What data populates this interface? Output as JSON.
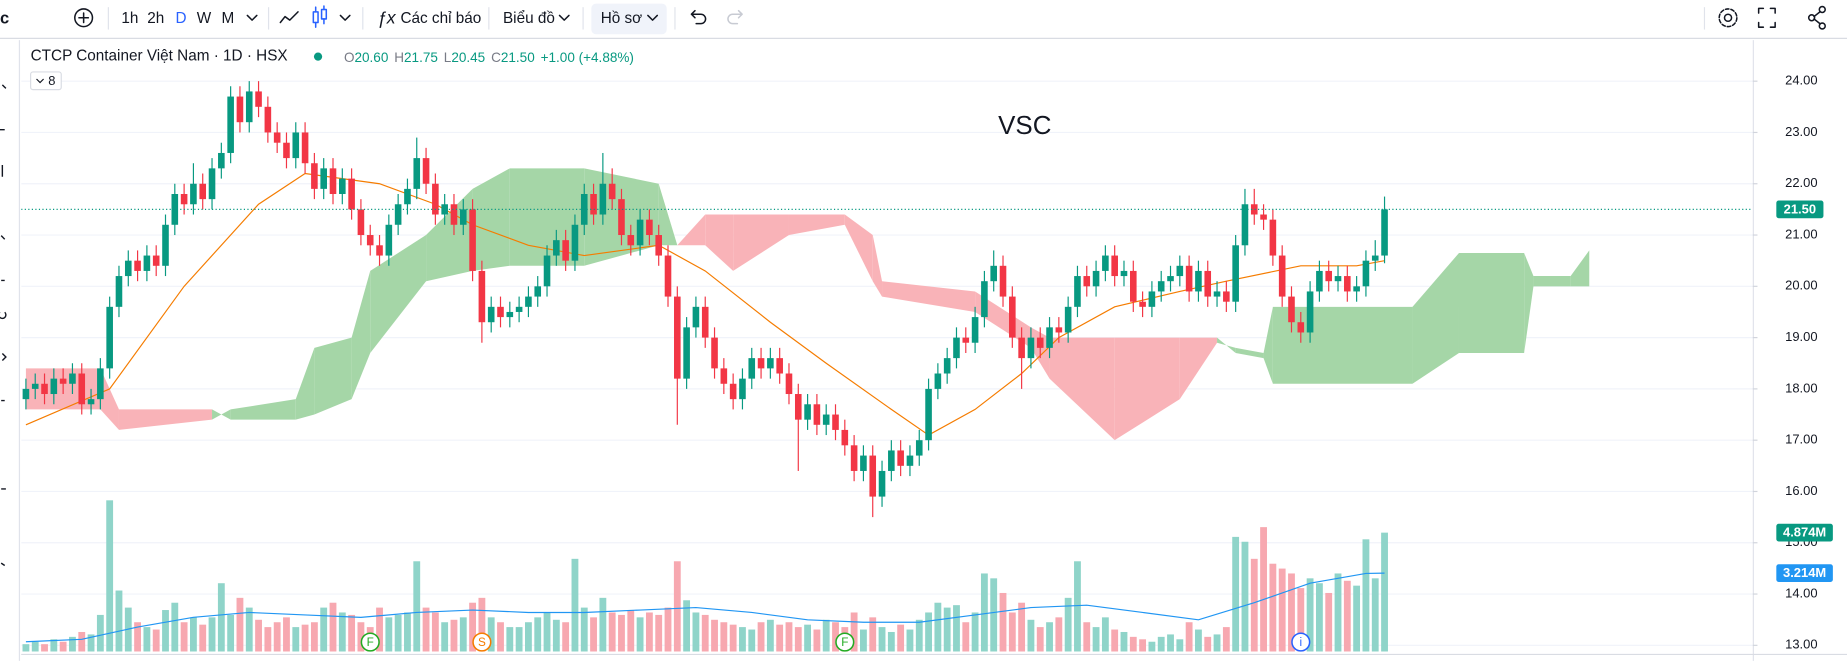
{
  "toolbar": {
    "cut_label": "c",
    "intervals": [
      "1h",
      "2h",
      "D",
      "W",
      "M"
    ],
    "active_interval": 2,
    "indicators_icon": "ƒx",
    "indicators": "Các chỉ báo",
    "chart_menu": "Biểu đồ",
    "profile_menu": "Hồ sơ"
  },
  "chart_data": {
    "type": "candlestick",
    "symbol": "VSC",
    "legend_title": "CTCP Container Việt Nam · 1D · HSX",
    "legend_items": [
      {
        "label": "O",
        "value": "20.60"
      },
      {
        "label": "H",
        "value": "21.75"
      },
      {
        "label": "L",
        "value": "20.45"
      },
      {
        "label": "C",
        "value": "21.50"
      }
    ],
    "legend_change": "+1.00 (+4.88%)",
    "indicators_button": "8",
    "up_color": "#089981",
    "down_color": "#f23645",
    "volume_up_color": "#8fd4c9",
    "volume_down_color": "#f7a8b0",
    "open": [
      17.8,
      18.0,
      18.1,
      17.9,
      18.2,
      18.1,
      18.3,
      17.7,
      17.8,
      18.4,
      19.6,
      20.2,
      20.5,
      20.3,
      20.6,
      20.4,
      21.2,
      21.8,
      21.6,
      22.0,
      21.7,
      22.3,
      22.6,
      23.7,
      23.2,
      23.8,
      23.5,
      23.0,
      22.8,
      22.5,
      23.0,
      22.4,
      21.9,
      22.3,
      21.8,
      22.1,
      21.5,
      21.0,
      20.8,
      20.6,
      21.2,
      21.6,
      21.9,
      22.5,
      22.0,
      21.4,
      21.6,
      21.2,
      21.5,
      20.3,
      19.3,
      19.6,
      19.4,
      19.5,
      19.6,
      19.8,
      20.0,
      20.6,
      20.9,
      20.5,
      21.2,
      21.8,
      21.4,
      22.0,
      21.7,
      21.0,
      20.8,
      21.3,
      21.0,
      20.6,
      19.8,
      18.2,
      19.2,
      19.6,
      19.0,
      18.4,
      18.1,
      17.8,
      18.2,
      18.6,
      18.4,
      18.6,
      18.3,
      17.9,
      17.4,
      17.7,
      17.3,
      17.5,
      17.2,
      16.9,
      16.4,
      16.7,
      15.9,
      16.4,
      16.8,
      16.5,
      16.7,
      17.0,
      18.0,
      18.3,
      18.6,
      19.0,
      18.9,
      19.4,
      20.1,
      20.4,
      19.8,
      19.0,
      18.6,
      19.0,
      18.8,
      19.2,
      19.1,
      19.6,
      20.2,
      20.0,
      20.3,
      20.6,
      20.2,
      20.3,
      19.7,
      19.6,
      19.9,
      20.1,
      20.2,
      20.4,
      19.9,
      20.3,
      19.8,
      19.9,
      19.7,
      20.8,
      21.6,
      21.4,
      21.3,
      20.6,
      19.8,
      19.3,
      19.1,
      19.9,
      20.3,
      20.1,
      20.2,
      19.9,
      20.0,
      20.5,
      20.6
    ],
    "high": [
      18.2,
      18.3,
      18.3,
      18.4,
      18.4,
      18.5,
      18.5,
      18.0,
      18.6,
      19.8,
      20.4,
      20.7,
      20.7,
      20.8,
      20.8,
      21.4,
      22.0,
      22.0,
      22.4,
      22.2,
      22.5,
      22.8,
      23.9,
      23.9,
      24.0,
      24.0,
      23.7,
      23.2,
      23.0,
      23.2,
      23.2,
      22.6,
      22.5,
      22.5,
      22.3,
      22.3,
      21.7,
      21.2,
      21.0,
      21.4,
      21.8,
      22.1,
      22.9,
      22.7,
      22.2,
      21.8,
      21.8,
      21.7,
      21.7,
      20.5,
      19.8,
      19.8,
      19.7,
      19.8,
      20.0,
      20.2,
      20.8,
      21.1,
      21.1,
      21.4,
      22.0,
      22.0,
      22.6,
      22.3,
      21.9,
      21.2,
      21.5,
      21.5,
      21.2,
      20.8,
      20.0,
      19.4,
      19.8,
      19.8,
      19.2,
      18.6,
      18.3,
      18.4,
      18.8,
      18.8,
      18.8,
      18.8,
      18.5,
      18.1,
      17.9,
      17.9,
      17.7,
      17.7,
      17.4,
      17.1,
      16.9,
      16.9,
      16.6,
      17.0,
      17.0,
      16.9,
      17.2,
      18.2,
      18.5,
      18.8,
      19.2,
      19.2,
      19.6,
      20.3,
      20.7,
      20.6,
      20.0,
      19.2,
      19.2,
      19.2,
      19.4,
      19.4,
      19.8,
      20.4,
      20.4,
      20.5,
      20.8,
      20.8,
      20.5,
      20.5,
      19.9,
      20.1,
      20.3,
      20.4,
      20.6,
      20.6,
      20.5,
      20.5,
      20.1,
      20.1,
      21.0,
      21.9,
      21.9,
      21.6,
      21.5,
      20.8,
      20.0,
      19.5,
      20.1,
      20.5,
      20.5,
      20.4,
      20.4,
      20.2,
      20.7,
      20.9,
      21.75
    ],
    "low": [
      17.6,
      17.8,
      17.7,
      17.7,
      17.9,
      17.9,
      17.5,
      17.5,
      17.6,
      18.2,
      19.4,
      20.0,
      20.1,
      20.1,
      20.2,
      20.2,
      21.0,
      21.4,
      21.4,
      21.5,
      21.5,
      22.1,
      22.4,
      23.0,
      23.0,
      23.3,
      22.8,
      22.6,
      22.3,
      22.3,
      22.2,
      21.7,
      21.7,
      21.6,
      21.6,
      21.3,
      20.8,
      20.6,
      20.4,
      20.4,
      21.0,
      21.4,
      21.7,
      21.8,
      21.2,
      21.2,
      21.0,
      21.0,
      20.1,
      18.9,
      19.1,
      19.2,
      19.2,
      19.3,
      19.4,
      19.6,
      19.8,
      20.4,
      20.3,
      20.3,
      21.0,
      21.2,
      21.2,
      21.5,
      20.8,
      20.6,
      20.6,
      20.8,
      20.4,
      19.6,
      17.3,
      18.0,
      19.0,
      18.8,
      18.2,
      17.9,
      17.6,
      17.6,
      18.0,
      18.2,
      18.2,
      18.1,
      17.7,
      16.4,
      17.2,
      17.1,
      17.1,
      17.0,
      16.7,
      16.2,
      16.2,
      15.5,
      15.7,
      16.2,
      16.3,
      16.3,
      16.5,
      16.8,
      17.8,
      18.1,
      18.4,
      18.7,
      18.7,
      19.2,
      19.9,
      19.6,
      18.8,
      18.0,
      18.4,
      18.6,
      18.6,
      18.9,
      18.9,
      19.4,
      19.8,
      19.8,
      20.1,
      20.0,
      20.0,
      19.5,
      19.4,
      19.4,
      19.7,
      19.9,
      20.0,
      19.7,
      19.7,
      19.6,
      19.6,
      19.5,
      19.5,
      20.6,
      21.2,
      21.1,
      20.4,
      19.6,
      19.1,
      18.9,
      18.9,
      19.7,
      19.9,
      19.9,
      19.7,
      19.7,
      19.8,
      20.3,
      20.45
    ],
    "close": [
      18.0,
      18.1,
      17.9,
      18.2,
      18.1,
      18.3,
      17.7,
      17.8,
      18.4,
      19.6,
      20.2,
      20.5,
      20.3,
      20.6,
      20.4,
      21.2,
      21.8,
      21.6,
      22.0,
      21.7,
      22.3,
      22.6,
      23.7,
      23.2,
      23.8,
      23.5,
      23.0,
      22.8,
      22.5,
      23.0,
      22.4,
      21.9,
      22.3,
      21.8,
      22.1,
      21.5,
      21.0,
      20.8,
      20.6,
      21.2,
      21.6,
      21.9,
      22.5,
      22.0,
      21.4,
      21.6,
      21.2,
      21.5,
      20.3,
      19.3,
      19.6,
      19.4,
      19.5,
      19.6,
      19.8,
      20.0,
      20.6,
      20.9,
      20.5,
      21.2,
      21.8,
      21.4,
      22.0,
      21.7,
      21.0,
      20.8,
      21.3,
      21.0,
      20.6,
      19.8,
      18.2,
      19.2,
      19.6,
      19.0,
      18.4,
      18.1,
      17.8,
      18.2,
      18.6,
      18.4,
      18.6,
      18.3,
      17.9,
      17.4,
      17.7,
      17.3,
      17.5,
      17.2,
      16.9,
      16.4,
      16.7,
      15.9,
      16.4,
      16.8,
      16.5,
      16.7,
      17.0,
      18.0,
      18.3,
      18.6,
      19.0,
      18.9,
      19.4,
      20.1,
      20.4,
      19.8,
      19.0,
      18.6,
      19.0,
      18.8,
      19.2,
      19.1,
      19.6,
      20.2,
      20.0,
      20.3,
      20.6,
      20.2,
      20.3,
      19.7,
      19.6,
      19.9,
      20.1,
      20.2,
      20.4,
      19.9,
      20.3,
      19.8,
      19.9,
      19.7,
      20.8,
      21.6,
      21.4,
      21.3,
      20.6,
      19.8,
      19.3,
      19.1,
      19.9,
      20.3,
      20.1,
      20.2,
      19.9,
      20.0,
      20.5,
      20.6,
      21.5
    ],
    "volume": [
      0.3,
      0.4,
      0.3,
      0.5,
      0.4,
      0.6,
      0.8,
      0.7,
      1.5,
      6.2,
      2.5,
      1.8,
      1.2,
      1.0,
      0.9,
      1.7,
      2.0,
      1.2,
      1.4,
      1.1,
      1.4,
      2.8,
      1.5,
      2.2,
      1.8,
      1.3,
      1.0,
      1.2,
      1.4,
      1.0,
      1.1,
      1.2,
      1.8,
      2.0,
      1.6,
      1.5,
      1.2,
      1.0,
      1.8,
      1.4,
      1.5,
      1.6,
      3.7,
      1.8,
      1.6,
      1.2,
      1.3,
      1.4,
      2.0,
      2.2,
      1.4,
      1.2,
      1.0,
      1.0,
      1.2,
      1.4,
      1.6,
      1.3,
      1.2,
      3.8,
      1.8,
      1.4,
      2.2,
      1.6,
      1.5,
      1.7,
      1.4,
      1.6,
      1.5,
      1.8,
      3.7,
      2.1,
      1.6,
      1.5,
      1.3,
      1.2,
      1.1,
      1.0,
      0.9,
      1.2,
      1.3,
      1.1,
      1.2,
      1.0,
      1.1,
      0.9,
      1.3,
      1.2,
      1.0,
      1.6,
      0.9,
      1.4,
      1.0,
      0.8,
      1.1,
      0.9,
      1.3,
      1.6,
      2.0,
      1.8,
      1.9,
      1.2,
      1.6,
      3.2,
      3.0,
      2.4,
      1.6,
      2.0,
      1.3,
      1.0,
      1.2,
      1.4,
      2.2,
      3.7,
      1.2,
      1.0,
      1.4,
      0.9,
      0.8,
      0.6,
      0.5,
      0.4,
      0.6,
      0.7,
      0.5,
      1.2,
      0.9,
      0.6,
      0.7,
      1.0,
      4.7,
      4.5,
      3.8,
      5.1,
      3.6,
      3.4,
      3.2,
      2.6,
      3.0,
      2.8,
      2.4,
      3.2,
      2.9,
      2.7,
      4.6,
      3.0,
      4.874
    ],
    "price_ma": {
      "color": "#f57c00",
      "x": [
        0,
        9,
        17,
        25,
        30,
        38,
        44,
        48,
        54,
        60,
        68,
        73,
        80,
        86,
        93,
        97,
        102,
        107,
        111,
        117,
        124,
        129,
        137,
        143,
        146
      ],
      "values": [
        17.3,
        18.0,
        20.0,
        21.6,
        22.2,
        22.0,
        21.6,
        21.2,
        20.8,
        20.6,
        20.8,
        20.3,
        19.3,
        18.5,
        17.6,
        17.1,
        17.6,
        18.3,
        19.0,
        19.6,
        19.9,
        20.1,
        20.4,
        20.4,
        20.5
      ]
    },
    "volume_ma": {
      "color": "#2196f3",
      "x": [
        0,
        6,
        12,
        18,
        24,
        30,
        36,
        42,
        48,
        54,
        60,
        66,
        72,
        78,
        84,
        90,
        96,
        102,
        108,
        114,
        120,
        126,
        132,
        138,
        144,
        146
      ],
      "values": [
        0.4,
        0.5,
        1.0,
        1.4,
        1.6,
        1.5,
        1.4,
        1.6,
        1.7,
        1.6,
        1.6,
        1.7,
        1.8,
        1.6,
        1.3,
        1.2,
        1.2,
        1.5,
        1.8,
        1.9,
        1.6,
        1.3,
        2.0,
        2.8,
        3.2,
        3.214
      ]
    },
    "ichimoku": {
      "up_color": "#a5d6a7",
      "down_color": "#f9b3b8",
      "x": [
        0,
        8,
        10,
        20,
        22,
        29,
        31,
        35,
        37,
        43,
        48,
        52,
        60,
        68,
        70,
        73,
        76,
        82,
        88,
        91,
        92,
        102,
        108,
        110,
        117,
        124,
        128,
        130,
        133,
        134,
        149,
        154,
        161,
        162,
        166,
        168
      ],
      "span_a": [
        17.6,
        17.6,
        17.2,
        17.4,
        17.6,
        17.8,
        18.8,
        19.0,
        20.3,
        21.0,
        21.9,
        22.3,
        22.3,
        22.0,
        20.8,
        20.8,
        20.3,
        21.0,
        21.2,
        20.1,
        19.8,
        19.5,
        18.8,
        18.2,
        17.0,
        17.8,
        18.9,
        18.8,
        18.7,
        19.6,
        19.6,
        20.65,
        20.65,
        20.2,
        20.2,
        20.7
      ],
      "span_b": [
        18.4,
        18.4,
        17.6,
        17.6,
        17.4,
        17.4,
        17.5,
        17.8,
        18.7,
        20.1,
        20.3,
        20.4,
        20.4,
        20.8,
        20.8,
        21.4,
        21.4,
        21.4,
        21.4,
        21.0,
        20.1,
        19.9,
        19.2,
        19.0,
        19.0,
        19.0,
        19.0,
        18.7,
        18.6,
        18.1,
        18.1,
        18.7,
        18.7,
        20.0,
        20.0,
        20.0
      ]
    },
    "ylim": [
      12.88,
      24.8
    ],
    "yticks": [
      {
        "value": 24,
        "label": "24.00"
      },
      {
        "value": 23,
        "label": "23.00"
      },
      {
        "value": 22,
        "label": "22.00"
      },
      {
        "value": 21,
        "label": "21.00"
      },
      {
        "value": 20,
        "label": "20.00"
      },
      {
        "value": 19,
        "label": "19.00"
      },
      {
        "value": 18,
        "label": "18.00"
      },
      {
        "value": 17,
        "label": "17.00"
      },
      {
        "value": 16,
        "label": "16.00"
      },
      {
        "value": 15,
        "label": "15.00"
      },
      {
        "value": 14,
        "label": "14.00"
      },
      {
        "value": 13,
        "label": "13.00"
      }
    ],
    "grid": true,
    "last_price": {
      "value": 21.5,
      "label": "21.50",
      "color": "#089981"
    },
    "volume_labels": [
      {
        "value": 4.874,
        "label": "4.874M",
        "color": "#089981"
      },
      {
        "value": 3.214,
        "label": "3.214M",
        "color": "#2196f3"
      }
    ],
    "events": [
      {
        "label": "F",
        "x": 37,
        "color": "#22ab22"
      },
      {
        "label": "S",
        "x": 49,
        "color": "#f57c00"
      },
      {
        "label": "F",
        "x": 88,
        "color": "#22ab22"
      },
      {
        "label": "i",
        "x": 137,
        "color": "#2962ff"
      }
    ]
  }
}
